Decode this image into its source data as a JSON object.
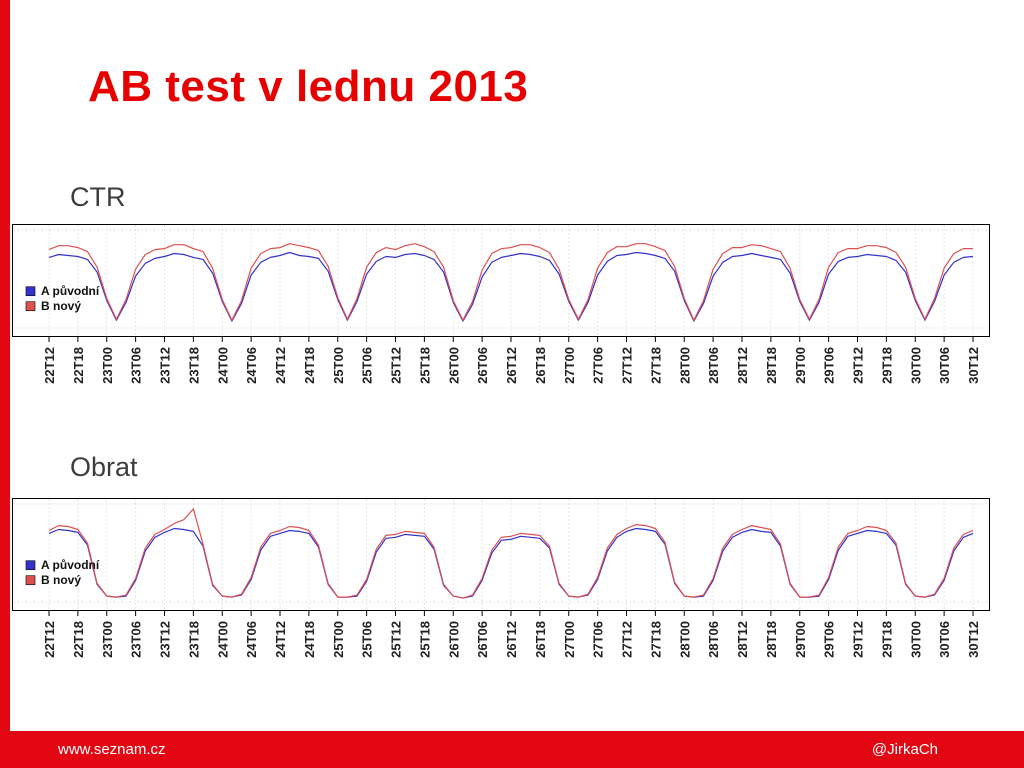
{
  "slide": {
    "title": "AB test v lednu 2013",
    "title_color": "#e60000",
    "accent_color": "#e30613",
    "footer": {
      "left": "www.seznam.cz",
      "right": "@JirkaCh"
    }
  },
  "chart_data": [
    {
      "type": "line",
      "title": "CTR",
      "xlabel": "",
      "ylabel": "",
      "ylim": [
        0,
        1
      ],
      "grid": "dotted vertical line at every x tick, dotted horizontal at top and bottom",
      "legend_position": "inside left-middle",
      "x_hours_step": 2,
      "x_tick_every_hours": 6,
      "x_tick_labels": [
        "22T12",
        "22T18",
        "23T00",
        "23T06",
        "23T12",
        "23T18",
        "24T00",
        "24T06",
        "24T12",
        "24T18",
        "25T00",
        "25T06",
        "25T12",
        "25T18",
        "26T00",
        "26T06",
        "26T12",
        "26T18",
        "27T00",
        "27T06",
        "27T12",
        "27T18",
        "28T00",
        "28T06",
        "28T12",
        "28T18",
        "29T00",
        "29T06",
        "29T12",
        "29T18",
        "30T00",
        "30T06",
        "30T12"
      ],
      "series": [
        {
          "name": "A  původní",
          "color": "#3333cc",
          "values": [
            0.72,
            0.75,
            0.74,
            0.73,
            0.7,
            0.57,
            0.28,
            0.08,
            0.26,
            0.53,
            0.66,
            0.71,
            0.73,
            0.76,
            0.75,
            0.72,
            0.7,
            0.56,
            0.27,
            0.07,
            0.25,
            0.54,
            0.67,
            0.72,
            0.74,
            0.77,
            0.74,
            0.73,
            0.71,
            0.58,
            0.29,
            0.08,
            0.27,
            0.55,
            0.68,
            0.73,
            0.72,
            0.75,
            0.76,
            0.74,
            0.7,
            0.57,
            0.26,
            0.07,
            0.24,
            0.52,
            0.67,
            0.72,
            0.74,
            0.76,
            0.75,
            0.73,
            0.69,
            0.55,
            0.27,
            0.08,
            0.26,
            0.54,
            0.68,
            0.74,
            0.75,
            0.77,
            0.76,
            0.74,
            0.71,
            0.58,
            0.28,
            0.07,
            0.25,
            0.53,
            0.67,
            0.73,
            0.74,
            0.76,
            0.74,
            0.72,
            0.7,
            0.56,
            0.27,
            0.08,
            0.26,
            0.55,
            0.68,
            0.72,
            0.73,
            0.75,
            0.74,
            0.73,
            0.69,
            0.57,
            0.28,
            0.08,
            0.27,
            0.54,
            0.67,
            0.72,
            0.73
          ]
        },
        {
          "name": "B  nový",
          "color": "#dd5050",
          "values": [
            0.8,
            0.84,
            0.84,
            0.82,
            0.78,
            0.62,
            0.3,
            0.09,
            0.29,
            0.6,
            0.75,
            0.8,
            0.81,
            0.85,
            0.85,
            0.81,
            0.78,
            0.61,
            0.29,
            0.08,
            0.28,
            0.61,
            0.76,
            0.81,
            0.82,
            0.86,
            0.84,
            0.82,
            0.79,
            0.63,
            0.31,
            0.09,
            0.3,
            0.62,
            0.77,
            0.82,
            0.8,
            0.84,
            0.86,
            0.83,
            0.78,
            0.62,
            0.28,
            0.08,
            0.27,
            0.59,
            0.76,
            0.81,
            0.82,
            0.85,
            0.85,
            0.82,
            0.77,
            0.6,
            0.29,
            0.09,
            0.29,
            0.61,
            0.77,
            0.83,
            0.83,
            0.86,
            0.86,
            0.83,
            0.79,
            0.63,
            0.3,
            0.08,
            0.28,
            0.6,
            0.76,
            0.82,
            0.82,
            0.85,
            0.84,
            0.81,
            0.78,
            0.61,
            0.29,
            0.09,
            0.29,
            0.62,
            0.77,
            0.81,
            0.81,
            0.84,
            0.84,
            0.82,
            0.77,
            0.62,
            0.3,
            0.09,
            0.3,
            0.61,
            0.76,
            0.81,
            0.81
          ]
        }
      ]
    },
    {
      "type": "line",
      "title": "Obrat",
      "xlabel": "",
      "ylabel": "",
      "ylim": [
        0,
        1
      ],
      "grid": "dotted vertical line at every x tick, dotted horizontal at top and bottom",
      "legend_position": "inside left-middle",
      "x_hours_step": 2,
      "x_tick_every_hours": 6,
      "x_tick_labels": [
        "22T12",
        "22T18",
        "23T00",
        "23T06",
        "23T12",
        "23T18",
        "24T00",
        "24T06",
        "24T12",
        "24T18",
        "25T00",
        "25T06",
        "25T12",
        "25T18",
        "26T00",
        "26T06",
        "26T12",
        "26T18",
        "27T00",
        "27T06",
        "27T12",
        "27T18",
        "28T00",
        "28T06",
        "28T12",
        "28T18",
        "29T00",
        "29T06",
        "29T12",
        "29T18",
        "30T00",
        "30T06",
        "30T12"
      ],
      "series": [
        {
          "name": "A  původní",
          "color": "#3333cc",
          "values": [
            0.7,
            0.74,
            0.73,
            0.71,
            0.58,
            0.18,
            0.06,
            0.05,
            0.06,
            0.22,
            0.52,
            0.66,
            0.71,
            0.75,
            0.74,
            0.72,
            0.57,
            0.17,
            0.06,
            0.05,
            0.07,
            0.23,
            0.53,
            0.67,
            0.7,
            0.73,
            0.72,
            0.7,
            0.56,
            0.18,
            0.05,
            0.05,
            0.06,
            0.21,
            0.51,
            0.65,
            0.66,
            0.69,
            0.68,
            0.67,
            0.54,
            0.17,
            0.06,
            0.04,
            0.06,
            0.22,
            0.5,
            0.63,
            0.64,
            0.67,
            0.66,
            0.65,
            0.55,
            0.18,
            0.06,
            0.05,
            0.07,
            0.23,
            0.52,
            0.66,
            0.72,
            0.75,
            0.74,
            0.72,
            0.59,
            0.19,
            0.06,
            0.05,
            0.06,
            0.22,
            0.52,
            0.66,
            0.71,
            0.74,
            0.72,
            0.71,
            0.57,
            0.18,
            0.05,
            0.05,
            0.06,
            0.23,
            0.53,
            0.67,
            0.7,
            0.73,
            0.72,
            0.7,
            0.58,
            0.18,
            0.06,
            0.05,
            0.07,
            0.22,
            0.52,
            0.66,
            0.7
          ]
        },
        {
          "name": "B  nový",
          "color": "#dd5050",
          "values": [
            0.73,
            0.78,
            0.77,
            0.74,
            0.6,
            0.19,
            0.06,
            0.05,
            0.07,
            0.24,
            0.55,
            0.69,
            0.74,
            0.8,
            0.84,
            0.95,
            0.59,
            0.18,
            0.06,
            0.05,
            0.08,
            0.25,
            0.56,
            0.7,
            0.73,
            0.77,
            0.76,
            0.73,
            0.58,
            0.19,
            0.05,
            0.05,
            0.07,
            0.23,
            0.54,
            0.68,
            0.69,
            0.72,
            0.71,
            0.7,
            0.56,
            0.18,
            0.06,
            0.04,
            0.07,
            0.24,
            0.53,
            0.66,
            0.67,
            0.7,
            0.69,
            0.68,
            0.57,
            0.19,
            0.06,
            0.05,
            0.08,
            0.25,
            0.55,
            0.69,
            0.75,
            0.79,
            0.78,
            0.75,
            0.61,
            0.2,
            0.06,
            0.05,
            0.07,
            0.24,
            0.55,
            0.69,
            0.74,
            0.78,
            0.76,
            0.74,
            0.59,
            0.19,
            0.05,
            0.05,
            0.07,
            0.25,
            0.56,
            0.7,
            0.73,
            0.77,
            0.76,
            0.73,
            0.6,
            0.19,
            0.06,
            0.05,
            0.08,
            0.24,
            0.55,
            0.69,
            0.73
          ]
        }
      ]
    }
  ]
}
